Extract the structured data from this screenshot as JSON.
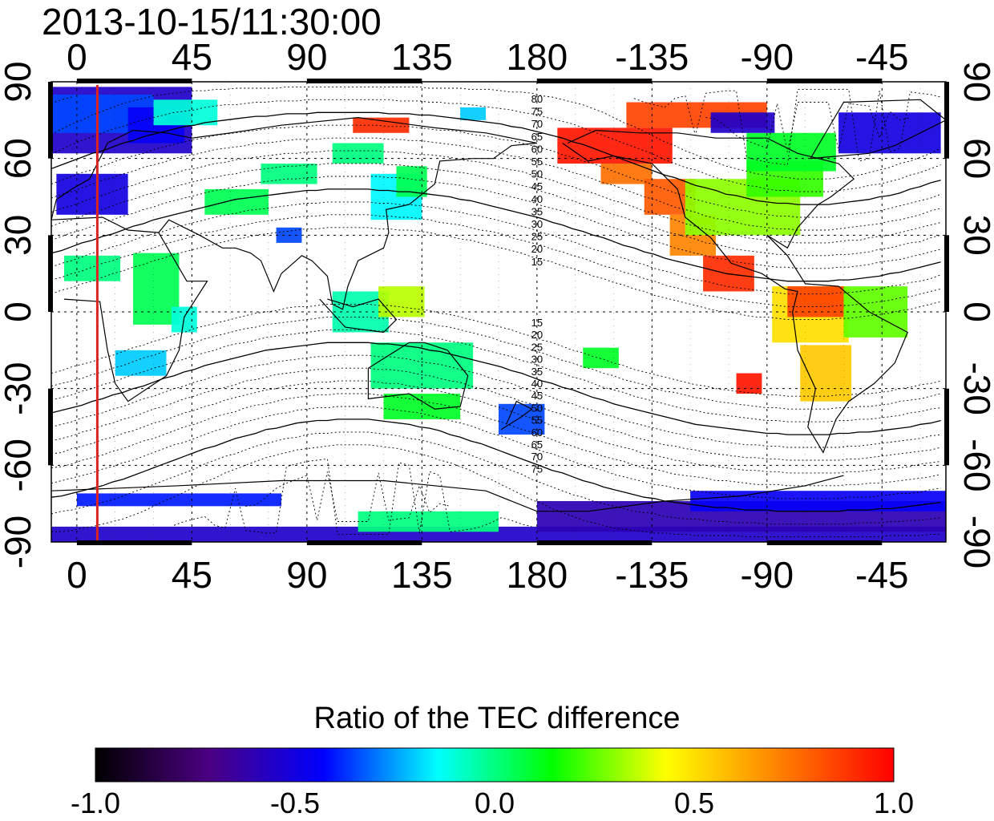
{
  "header": {
    "timestamp": "2013-10-15/11:30:00"
  },
  "map": {
    "projection": "equirectangular",
    "center_longitude": 180,
    "lon_range": [
      -10,
      340
    ],
    "lat_range": [
      -90,
      90
    ],
    "lon_ticks": [
      0,
      45,
      90,
      135,
      180,
      -135,
      -90,
      -45
    ],
    "lat_ticks": [
      90,
      60,
      30,
      0,
      -30,
      -60,
      -90
    ],
    "terminator_longitude": 8,
    "terminator_color": "#dd2222",
    "north_contour_labels": [
      "80",
      "75",
      "70",
      "65",
      "60",
      "55",
      "50",
      "45",
      "40",
      "35",
      "30",
      "25",
      "20",
      "15"
    ],
    "south_contour_labels": [
      "15",
      "20",
      "25",
      "30",
      "35",
      "40",
      "45",
      "50",
      "55",
      "60",
      "65",
      "70",
      "75"
    ],
    "contour_label_longitude": 180,
    "patches": [
      {
        "lon": -10,
        "lat": 62,
        "w": 55,
        "h": 26,
        "v": -0.55
      },
      {
        "lon": -10,
        "lat": 70,
        "w": 40,
        "h": 15,
        "v": -0.35
      },
      {
        "lon": 20,
        "lat": 66,
        "w": 22,
        "h": 14,
        "v": -0.45
      },
      {
        "lon": -8,
        "lat": 38,
        "w": 28,
        "h": 16,
        "v": -0.5
      },
      {
        "lon": 30,
        "lat": 73,
        "w": 25,
        "h": 10,
        "v": -0.1
      },
      {
        "lon": -5,
        "lat": 12,
        "w": 22,
        "h": 10,
        "v": 0.0
      },
      {
        "lon": 22,
        "lat": -5,
        "w": 18,
        "h": 28,
        "v": 0.05
      },
      {
        "lon": 15,
        "lat": -25,
        "w": 20,
        "h": 10,
        "v": -0.2
      },
      {
        "lon": 37,
        "lat": -8,
        "w": 10,
        "h": 10,
        "v": -0.1
      },
      {
        "lon": 50,
        "lat": 38,
        "w": 25,
        "h": 10,
        "v": 0.05
      },
      {
        "lon": 72,
        "lat": 50,
        "w": 22,
        "h": 8,
        "v": 0.0
      },
      {
        "lon": 78,
        "lat": 27,
        "w": 10,
        "h": 6,
        "v": -0.35
      },
      {
        "lon": 100,
        "lat": 58,
        "w": 20,
        "h": 8,
        "v": 0.0
      },
      {
        "lon": 115,
        "lat": 36,
        "w": 20,
        "h": 18,
        "v": -0.15
      },
      {
        "lon": 125,
        "lat": 45,
        "w": 12,
        "h": 12,
        "v": 0.05
      },
      {
        "lon": 100,
        "lat": -8,
        "w": 22,
        "h": 16,
        "v": -0.05
      },
      {
        "lon": 118,
        "lat": -2,
        "w": 18,
        "h": 12,
        "v": 0.35
      },
      {
        "lon": 115,
        "lat": -30,
        "w": 40,
        "h": 18,
        "v": 0.0
      },
      {
        "lon": 120,
        "lat": -42,
        "w": 30,
        "h": 10,
        "v": 0.1
      },
      {
        "lon": 165,
        "lat": -48,
        "w": 18,
        "h": 12,
        "v": -0.35
      },
      {
        "lon": 108,
        "lat": 70,
        "w": 22,
        "h": 6,
        "v": 0.9
      },
      {
        "lon": 150,
        "lat": 75,
        "w": 10,
        "h": 5,
        "v": -0.2
      },
      {
        "lon": 188,
        "lat": 58,
        "w": 45,
        "h": 14,
        "v": 0.95
      },
      {
        "lon": 205,
        "lat": 50,
        "w": 20,
        "h": 8,
        "v": 0.75
      },
      {
        "lon": 222,
        "lat": 38,
        "w": 20,
        "h": 14,
        "v": 0.8
      },
      {
        "lon": 232,
        "lat": 22,
        "w": 18,
        "h": 16,
        "v": 0.7
      },
      {
        "lon": 245,
        "lat": 8,
        "w": 20,
        "h": 14,
        "v": 0.9
      },
      {
        "lon": 238,
        "lat": 30,
        "w": 45,
        "h": 22,
        "v": 0.3
      },
      {
        "lon": 262,
        "lat": 45,
        "w": 30,
        "h": 14,
        "v": 0.2
      },
      {
        "lon": 262,
        "lat": 55,
        "w": 35,
        "h": 15,
        "v": 0.1
      },
      {
        "lon": 215,
        "lat": 72,
        "w": 55,
        "h": 10,
        "v": 0.85
      },
      {
        "lon": 248,
        "lat": 70,
        "w": 25,
        "h": 8,
        "v": -0.55
      },
      {
        "lon": 298,
        "lat": 62,
        "w": 40,
        "h": 16,
        "v": -0.5
      },
      {
        "lon": 272,
        "lat": -12,
        "w": 30,
        "h": 22,
        "v": 0.5
      },
      {
        "lon": 278,
        "lat": -2,
        "w": 22,
        "h": 12,
        "v": 0.85
      },
      {
        "lon": 300,
        "lat": -10,
        "w": 25,
        "h": 20,
        "v": 0.25
      },
      {
        "lon": 283,
        "lat": -35,
        "w": 20,
        "h": 22,
        "v": 0.55
      },
      {
        "lon": 258,
        "lat": -32,
        "w": 10,
        "h": 8,
        "v": 0.95
      },
      {
        "lon": 198,
        "lat": -22,
        "w": 14,
        "h": 8,
        "v": 0.1
      },
      {
        "lon": -10,
        "lat": -92,
        "w": 350,
        "h": 8,
        "v": -0.55
      },
      {
        "lon": 180,
        "lat": -86,
        "w": 160,
        "h": 12,
        "v": -0.6
      },
      {
        "lon": 240,
        "lat": -78,
        "w": 100,
        "h": 8,
        "v": -0.45
      },
      {
        "lon": 110,
        "lat": -86,
        "w": 55,
        "h": 8,
        "v": 0.0
      },
      {
        "lon": 0,
        "lat": -76,
        "w": 80,
        "h": 5,
        "v": -0.4
      }
    ]
  },
  "colorbar": {
    "title": "Ratio of the TEC difference",
    "min": -1.0,
    "max": 1.0,
    "tick_values": [
      -1.0,
      -0.5,
      0.0,
      0.5,
      1.0
    ],
    "tick_labels": [
      "-1.0",
      "-0.5",
      "0.0",
      "0.5",
      "1.0"
    ],
    "stops": [
      "#000000",
      "#4b0082",
      "#0000ff",
      "#00ffff",
      "#00ff00",
      "#ffff00",
      "#ff8000",
      "#ff0000"
    ]
  }
}
